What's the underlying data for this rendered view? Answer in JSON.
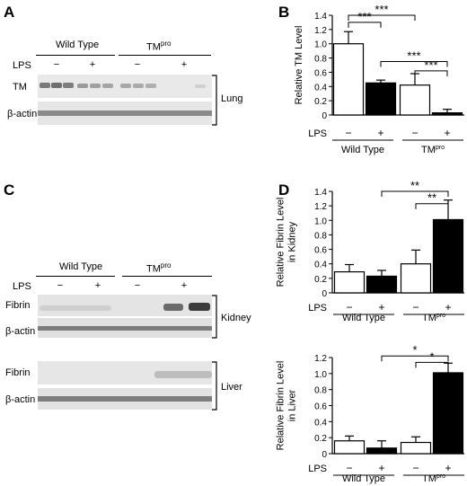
{
  "panels": {
    "A": {
      "letter": "A",
      "group_labels": [
        "Wild Type",
        "TMpro"
      ],
      "lps_label": "LPS",
      "lps_signs": [
        "−",
        "+",
        "−",
        "+"
      ],
      "rows": [
        "TM",
        "β-actin"
      ],
      "tissue": "Lung"
    },
    "B": {
      "letter": "B"
    },
    "C": {
      "letter": "C",
      "group_labels": [
        "Wild Type",
        "TMpro"
      ],
      "lps_label": "LPS",
      "lps_signs": [
        "−",
        "+",
        "−",
        "+"
      ],
      "kidney_rows": [
        "Fibrin",
        "β-actin"
      ],
      "kidney_tissue": "Kidney",
      "liver_rows": [
        "Fibrin",
        "β-actin"
      ],
      "liver_tissue": "Liver"
    },
    "D": {
      "letter": "D"
    }
  },
  "chart_data": [
    {
      "id": "B",
      "type": "bar",
      "ylabel": "Relative TM Level",
      "ylim": [
        0,
        1.4
      ],
      "yticks": [
        "0",
        "0.2",
        "0.4",
        "0.6",
        "0.8",
        "1.0",
        "1.2",
        "1.4"
      ],
      "lps_label": "LPS",
      "lps_signs": [
        "−",
        "+",
        "−",
        "+"
      ],
      "groups": [
        "Wild Type",
        "TMpro"
      ],
      "values": [
        1.0,
        0.45,
        0.42,
        0.03
      ],
      "errors": [
        0.17,
        0.04,
        0.16,
        0.05
      ],
      "fills": [
        "#ffffff",
        "#000000",
        "#ffffff",
        "#000000"
      ],
      "significance": [
        {
          "from": 0,
          "to": 1,
          "label": "***",
          "level": 1.3
        },
        {
          "from": 0,
          "to": 2,
          "label": "***",
          "level": 1.4
        },
        {
          "from": 1,
          "to": 3,
          "label": "***",
          "level": 0.75
        },
        {
          "from": 2,
          "to": 3,
          "label": "***",
          "level": 0.62
        }
      ]
    },
    {
      "id": "D-kidney",
      "type": "bar",
      "ylabel": "Relative Fibrin Level in Kidney",
      "ylabel_lines": [
        "Relative Fibrin Level",
        "in Kidney"
      ],
      "ylim": [
        0,
        1.4
      ],
      "yticks": [
        "0",
        "0.2",
        "0.4",
        "0.6",
        "0.8",
        "1.0",
        "1.2",
        "1.4"
      ],
      "lps_label": "LPS",
      "lps_signs": [
        "−",
        "+",
        "−",
        "+"
      ],
      "groups": [
        "Wild Type",
        "TMpro"
      ],
      "values": [
        0.29,
        0.23,
        0.4,
        1.01
      ],
      "errors": [
        0.1,
        0.08,
        0.19,
        0.27
      ],
      "fills": [
        "#ffffff",
        "#000000",
        "#ffffff",
        "#000000"
      ],
      "significance": [
        {
          "from": 1,
          "to": 3,
          "label": "**",
          "level": 1.4
        },
        {
          "from": 2,
          "to": 3,
          "label": "**",
          "level": 1.23
        }
      ]
    },
    {
      "id": "D-liver",
      "type": "bar",
      "ylabel": "Relative Fibrin Level in Liver",
      "ylabel_lines": [
        "Relative Fibrin Level",
        "in Liver"
      ],
      "ylim": [
        0,
        1.2
      ],
      "yticks": [
        "0",
        "0.2",
        "0.4",
        "0.6",
        "0.8",
        "1.0",
        "1.2"
      ],
      "lps_label": "LPS",
      "lps_signs": [
        "−",
        "+",
        "−",
        "+"
      ],
      "groups": [
        "Wild Type",
        "TMpro"
      ],
      "values": [
        0.16,
        0.07,
        0.14,
        1.01
      ],
      "errors": [
        0.06,
        0.09,
        0.07,
        0.12
      ],
      "fills": [
        "#ffffff",
        "#000000",
        "#ffffff",
        "#000000"
      ],
      "significance": [
        {
          "from": 1,
          "to": 3,
          "label": "*",
          "level": 1.22
        },
        {
          "from": 2,
          "to": 3,
          "label": "*",
          "level": 1.14
        }
      ]
    }
  ]
}
